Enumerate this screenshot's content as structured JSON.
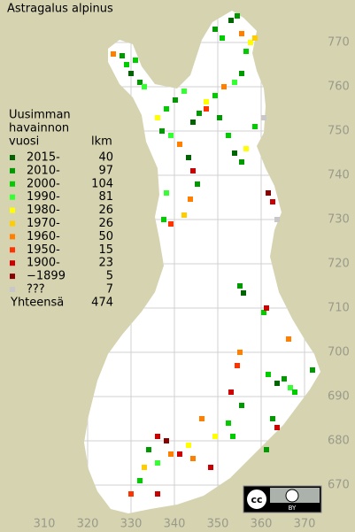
{
  "title": "Astragalus alpinus",
  "legend": {
    "header": [
      "Uusimman",
      "havainnon",
      "vuosi"
    ],
    "count_header": "lkm",
    "items": [
      {
        "label": "2015-",
        "count": 40,
        "color": "#006400"
      },
      {
        "label": "2010-",
        "count": 97,
        "color": "#009900"
      },
      {
        "label": "2000-",
        "count": 104,
        "color": "#00cc00"
      },
      {
        "label": "1990-",
        "count": 81,
        "color": "#33ff33"
      },
      {
        "label": "1980-",
        "count": 26,
        "color": "#ffff00"
      },
      {
        "label": "1970-",
        "count": 26,
        "color": "#ffcc00"
      },
      {
        "label": "1960-",
        "count": 50,
        "color": "#ff8000"
      },
      {
        "label": "1950-",
        "count": 15,
        "color": "#ff3300"
      },
      {
        "label": "1900-",
        "count": 23,
        "color": "#cc0000"
      },
      {
        "label": "−1899",
        "count": 5,
        "color": "#880000"
      },
      {
        "label": "???",
        "count": 7,
        "color": "#c8c8c8"
      }
    ],
    "total_label": "Yhteensä",
    "total": 474
  },
  "xticks": [
    310,
    320,
    330,
    340,
    350,
    360,
    370
  ],
  "yticks": [
    670,
    680,
    690,
    700,
    710,
    720,
    730,
    740,
    750,
    760,
    770
  ],
  "license": {
    "cc": "cc",
    "by": "BY"
  }
}
